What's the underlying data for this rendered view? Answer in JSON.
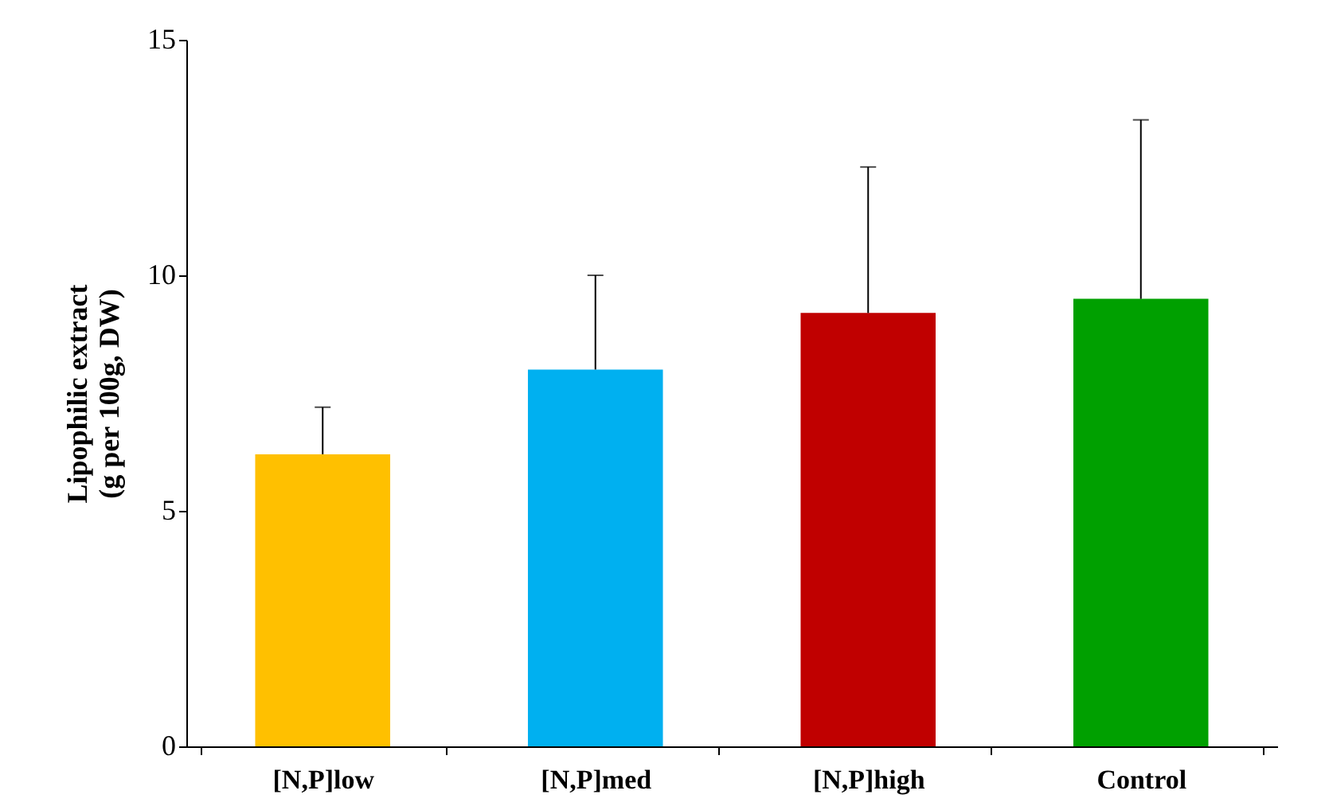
{
  "chart_data": {
    "type": "bar",
    "ylabel": "Lipophilic extract\n(g per 100g, DW)",
    "categories": [
      "[N,P]low",
      "[N,P]med",
      "[N,P]high",
      "Control"
    ],
    "values": [
      6.2,
      8.0,
      9.2,
      9.5
    ],
    "colors": [
      "#ffc000",
      "#00b0f0",
      "#c00000",
      "#00a000"
    ],
    "errors": [
      [
        6.2,
        7.2
      ],
      [
        8.0,
        10.0
      ],
      [
        9.2,
        12.3
      ],
      [
        9.5,
        13.3
      ]
    ],
    "ylim": [
      0,
      15
    ],
    "yticks": [
      0,
      5,
      10,
      15
    ],
    "grid": false
  }
}
